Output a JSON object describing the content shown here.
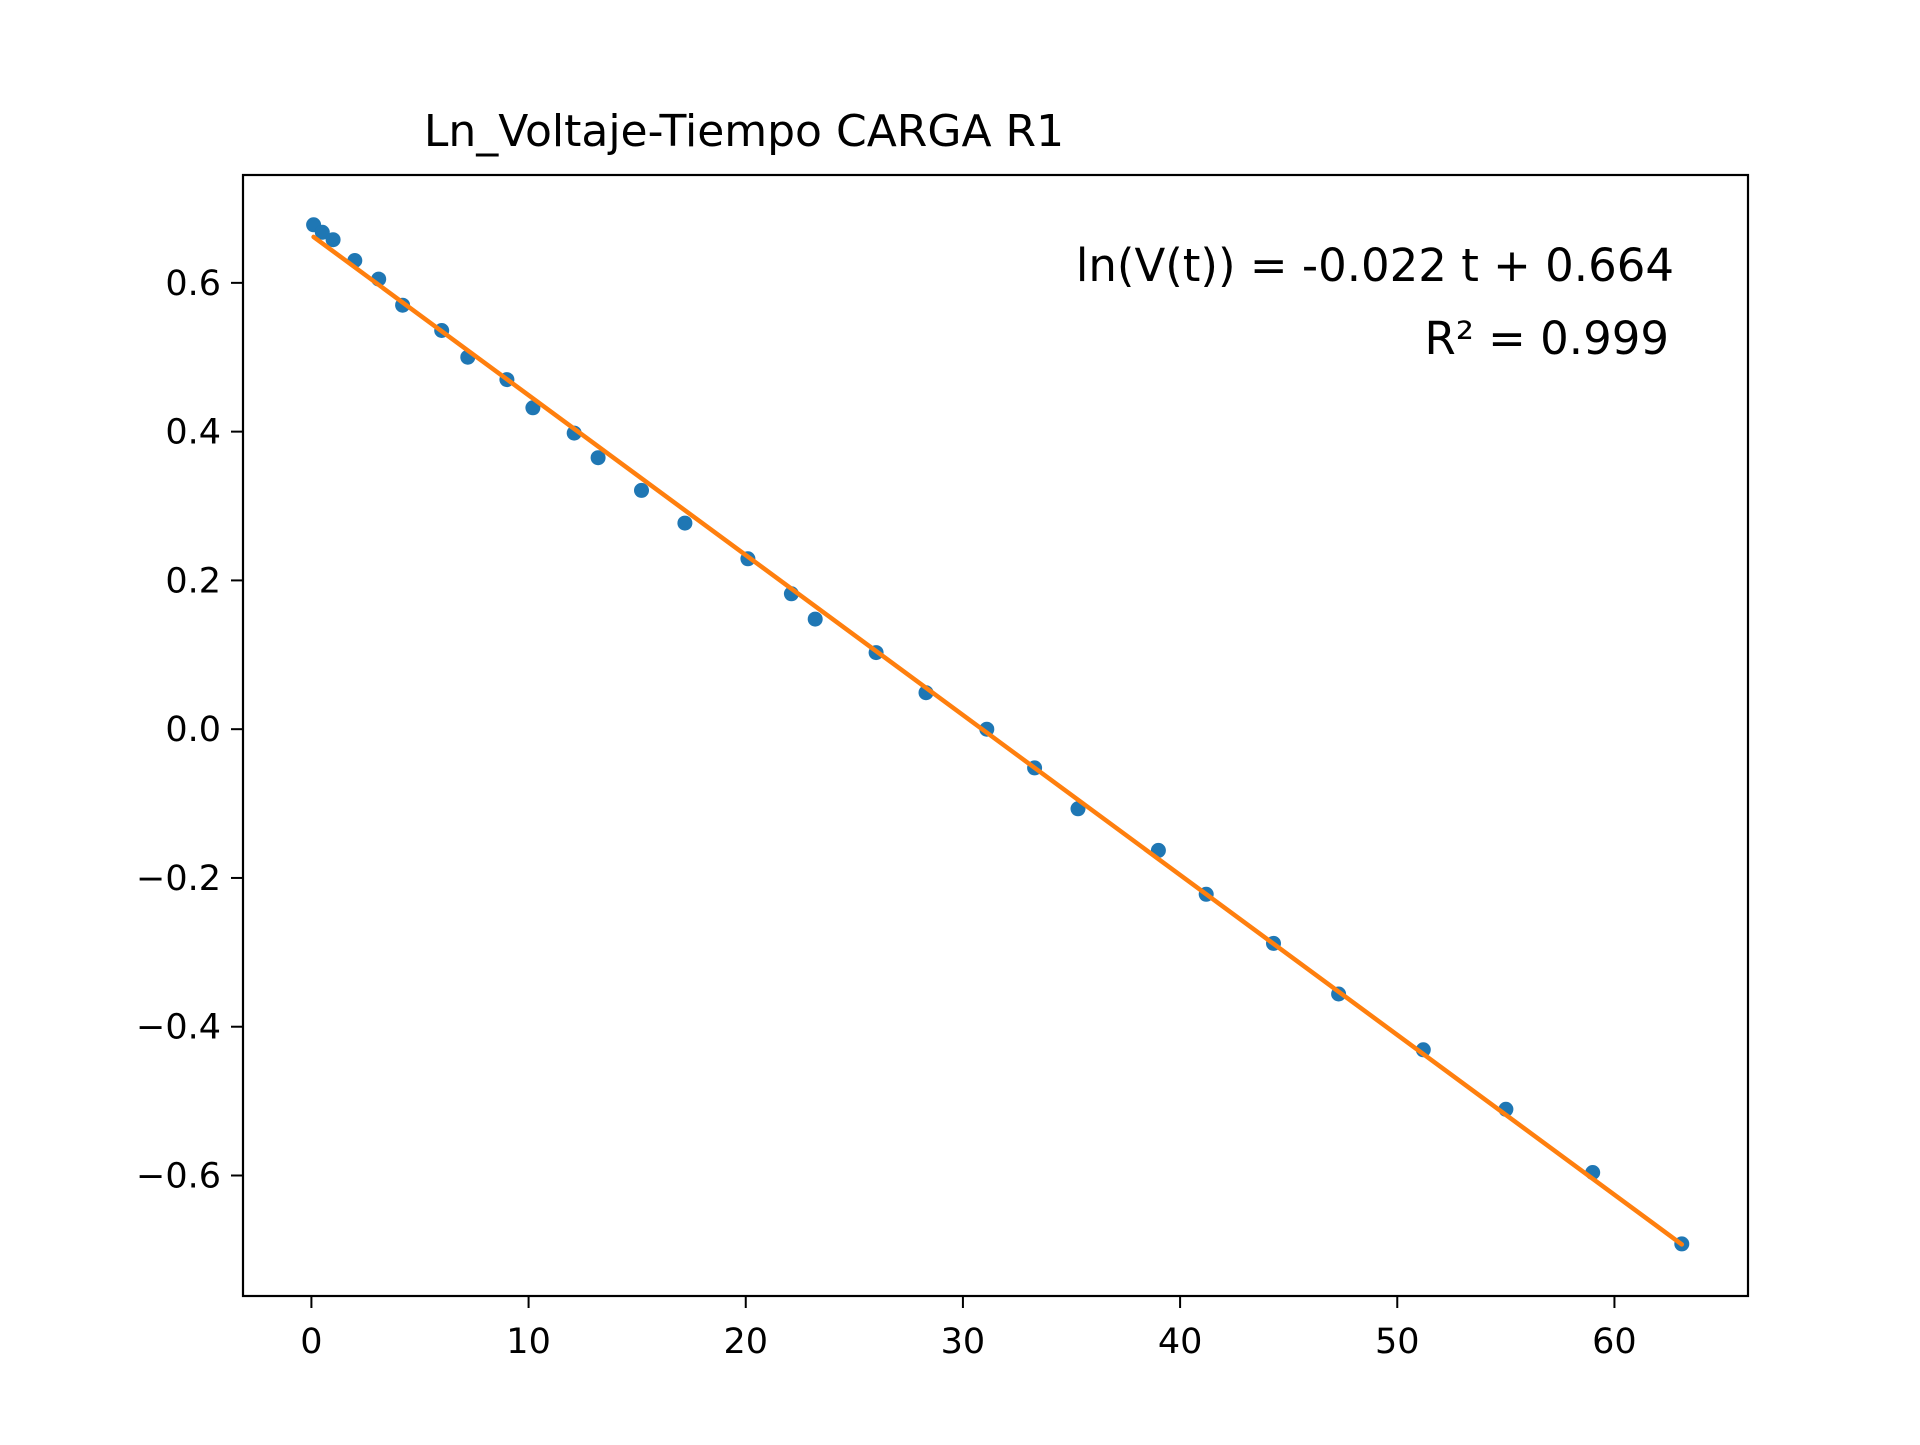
{
  "chart_data": {
    "type": "scatter",
    "title": "Ln_Voltaje-Tiempo CARGA R1",
    "xlabel": "",
    "ylabel": "",
    "xlim": [
      -3.15,
      66.15
    ],
    "ylim": [
      -0.762,
      0.745
    ],
    "x_ticks": [
      0,
      10,
      20,
      30,
      40,
      50,
      60
    ],
    "y_ticks": [
      0.6,
      0.4,
      0.2,
      0.0,
      -0.2,
      -0.4,
      -0.6
    ],
    "x_tick_labels": [
      "0",
      "10",
      "20",
      "30",
      "40",
      "50",
      "60"
    ],
    "y_tick_labels": [
      "0.6",
      "0.4",
      "0.2",
      "0.0",
      "−0.2",
      "−0.4",
      "−0.6"
    ],
    "grid": false,
    "series": [
      {
        "kind": "scatter",
        "color": "#1f77b4",
        "points": [
          [
            0.1,
            0.678
          ],
          [
            0.5,
            0.668
          ],
          [
            1.0,
            0.658
          ],
          [
            2.0,
            0.63
          ],
          [
            3.1,
            0.605
          ],
          [
            4.2,
            0.57
          ],
          [
            6.0,
            0.536
          ],
          [
            7.2,
            0.5
          ],
          [
            9.0,
            0.47
          ],
          [
            10.2,
            0.432
          ],
          [
            12.1,
            0.398
          ],
          [
            13.2,
            0.365
          ],
          [
            15.2,
            0.321
          ],
          [
            17.2,
            0.277
          ],
          [
            20.1,
            0.229
          ],
          [
            22.1,
            0.182
          ],
          [
            23.2,
            0.148
          ],
          [
            26.0,
            0.103
          ],
          [
            28.3,
            0.049
          ],
          [
            31.1,
            0.0
          ],
          [
            33.3,
            -0.052
          ],
          [
            35.3,
            -0.107
          ],
          [
            39.0,
            -0.163
          ],
          [
            41.2,
            -0.222
          ],
          [
            44.3,
            -0.288
          ],
          [
            47.3,
            -0.356
          ],
          [
            51.2,
            -0.431
          ],
          [
            55.0,
            -0.511
          ],
          [
            59.0,
            -0.596
          ],
          [
            63.1,
            -0.692
          ]
        ]
      },
      {
        "kind": "line",
        "color": "#ff7f0e",
        "fit": {
          "slope": -0.0215,
          "intercept": 0.664,
          "x_range": [
            0.1,
            63.1
          ]
        }
      }
    ],
    "annotations": [
      "ln(V(t)) = -0.022 t + 0.664",
      "R² = 0.999"
    ]
  }
}
